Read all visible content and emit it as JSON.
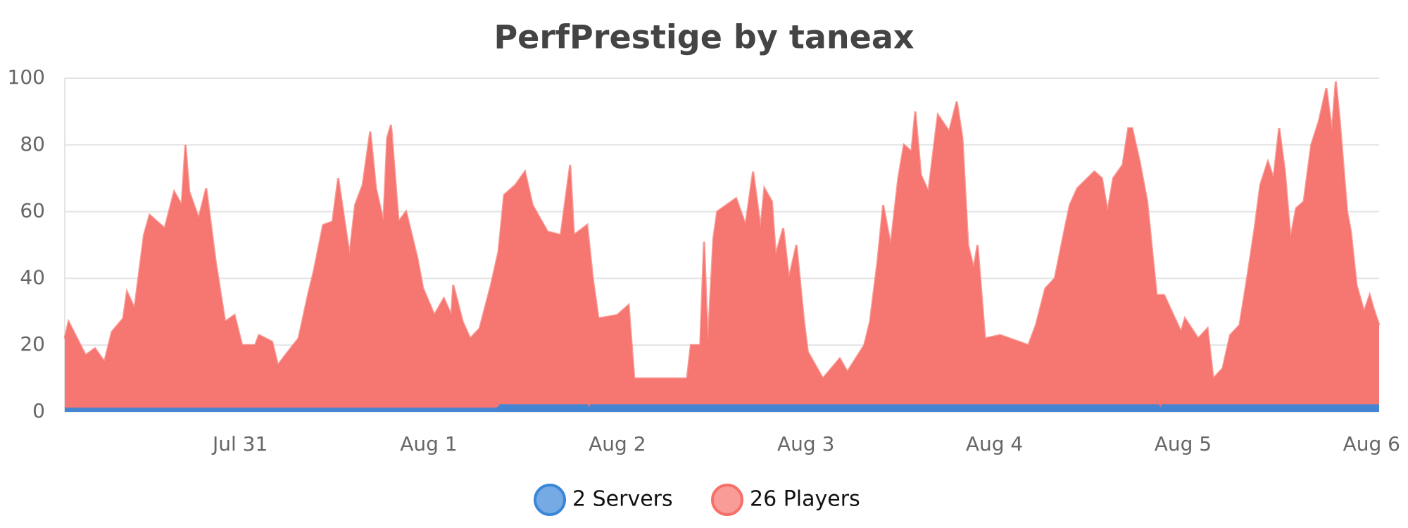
{
  "chart_data": {
    "type": "area",
    "title": "PerfPrestige by taneax",
    "x": [
      0.07,
      0.09,
      0.18,
      0.23,
      0.28,
      0.32,
      0.38,
      0.4,
      0.44,
      0.49,
      0.52,
      0.6,
      0.65,
      0.69,
      0.71,
      0.73,
      0.78,
      0.82,
      0.87,
      0.92,
      0.97,
      1.01,
      1.08,
      1.1,
      1.17,
      1.2,
      1.24,
      1.31,
      1.36,
      1.39,
      1.44,
      1.49,
      1.52,
      1.58,
      1.61,
      1.65,
      1.69,
      1.72,
      1.76,
      1.78,
      1.8,
      1.84,
      1.88,
      1.94,
      1.97,
      2.03,
      2.08,
      2.12,
      2.13,
      2.18,
      2.22,
      2.27,
      2.33,
      2.37,
      2.4,
      2.46,
      2.51,
      2.55,
      2.63,
      2.7,
      2.75,
      2.77,
      2.84,
      2.87,
      2.9,
      3.0,
      3.06,
      3.09,
      3.37,
      3.39,
      3.44,
      3.46,
      3.48,
      3.51,
      3.53,
      3.63,
      3.68,
      3.72,
      3.76,
      3.78,
      3.82,
      3.84,
      3.88,
      3.91,
      3.95,
      3.99,
      4.01,
      4.09,
      4.18,
      4.22,
      4.31,
      4.34,
      4.38,
      4.41,
      4.45,
      4.49,
      4.52,
      4.56,
      4.58,
      4.61,
      4.65,
      4.7,
      4.76,
      4.8,
      4.83,
      4.86,
      4.89,
      4.91,
      4.95,
      5.03,
      5.18,
      5.22,
      5.27,
      5.32,
      5.37,
      5.4,
      5.44,
      5.53,
      5.57,
      5.6,
      5.63,
      5.68,
      5.71,
      5.73,
      5.77,
      5.81,
      5.86,
      5.9,
      5.94,
      5.99,
      6.01,
      6.08,
      6.13,
      6.16,
      6.21,
      6.25,
      6.3,
      6.34,
      6.38,
      6.41,
      6.45,
      6.48,
      6.51,
      6.54,
      6.57,
      6.6,
      6.64,
      6.68,
      6.72,
      6.76,
      6.79,
      6.81,
      6.83,
      6.87,
      6.89,
      6.92,
      6.96,
      6.99,
      7.01,
      7.04
    ],
    "series": [
      {
        "name": "26 Players",
        "color": "#f6706a",
        "values": [
          22,
          27,
          17,
          19,
          15,
          24,
          28,
          36,
          31,
          53,
          59,
          55,
          66,
          62,
          80,
          66,
          58,
          67,
          45,
          27,
          29,
          20,
          20,
          23,
          21,
          14,
          17,
          22,
          35,
          42,
          56,
          57,
          70,
          47,
          62,
          68,
          84,
          67,
          57,
          82,
          86,
          57,
          60,
          46,
          37,
          29,
          34,
          29,
          38,
          27,
          22,
          25,
          38,
          48,
          65,
          68,
          72,
          62,
          54,
          53,
          74,
          53,
          56,
          40,
          28,
          29,
          32,
          10,
          10,
          20,
          20,
          51,
          20,
          52,
          60,
          64,
          56,
          72,
          55,
          67,
          63,
          47,
          55,
          40,
          50,
          27,
          18,
          10,
          16,
          12,
          20,
          27,
          45,
          62,
          50,
          70,
          80,
          78,
          90,
          71,
          66,
          89,
          84,
          93,
          82,
          50,
          43,
          50,
          22,
          23,
          20,
          26,
          37,
          40,
          54,
          62,
          67,
          72,
          70,
          60,
          70,
          74,
          85,
          85,
          75,
          63,
          35,
          35,
          30,
          24,
          28,
          22,
          25,
          10,
          13,
          23,
          26,
          40,
          55,
          68,
          75,
          70,
          85,
          72,
          52,
          61,
          63,
          80,
          87,
          97,
          84,
          99,
          88,
          60,
          54,
          38,
          30,
          35,
          31,
          26
        ]
      },
      {
        "name": "2 Servers",
        "color": "#3a86d8",
        "x": [
          0.07,
          2.36,
          2.38,
          2.84,
          2.85,
          2.86,
          5.87,
          5.88,
          5.89,
          7.04
        ],
        "values": [
          1,
          1,
          2,
          2,
          1,
          2,
          2,
          1,
          2,
          2
        ]
      }
    ],
    "xlim": [
      0.07,
      7.04
    ],
    "xticks": [
      {
        "value": 1,
        "label": "Jul 31"
      },
      {
        "value": 2,
        "label": "Aug 1"
      },
      {
        "value": 3,
        "label": "Aug 2"
      },
      {
        "value": 4,
        "label": "Aug 3"
      },
      {
        "value": 5,
        "label": "Aug 4"
      },
      {
        "value": 6,
        "label": "Aug 5"
      },
      {
        "value": 7,
        "label": "Aug 6"
      }
    ],
    "ylim": [
      0,
      100
    ],
    "yticks": [
      0,
      20,
      40,
      60,
      80,
      100
    ],
    "grid": true,
    "legend": "bottom"
  }
}
